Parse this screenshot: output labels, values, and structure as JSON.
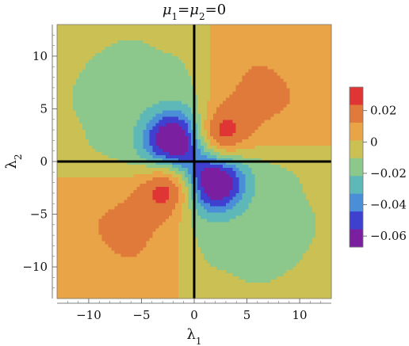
{
  "chart_data": {
    "type": "heatmap",
    "title_parts": [
      {
        "t": "μ",
        "italic": true
      },
      {
        "t": "1",
        "sub": true
      },
      {
        "t": "=",
        "italic": false
      },
      {
        "t": "μ",
        "italic": true
      },
      {
        "t": "2",
        "sub": true
      },
      {
        "t": "=0",
        "italic": false
      }
    ],
    "xlabel_parts": [
      {
        "t": "λ"
      },
      {
        "t": "1",
        "sub": true
      }
    ],
    "ylabel_parts": [
      {
        "t": "λ"
      },
      {
        "t": "2",
        "sub": true
      }
    ],
    "xlim": [
      -13,
      13
    ],
    "ylim": [
      -13,
      13
    ],
    "x_ticks": [
      -10,
      -5,
      0,
      5,
      10
    ],
    "y_ticks": [
      -10,
      -5,
      0,
      5,
      10
    ],
    "x_tick_labels": [
      "−10",
      "−5",
      "0",
      "5",
      "10"
    ],
    "y_tick_labels": [
      "−10",
      "−5",
      "0",
      "5",
      "10"
    ],
    "colorbar": {
      "range": [
        -0.067,
        0.035
      ],
      "ticks": [
        0.02,
        0,
        -0.02,
        -0.04,
        -0.06
      ],
      "tick_labels": [
        "0.02",
        "0",
        "−0.02",
        "−0.04",
        "−0.06"
      ],
      "colors": [
        "#7a1fa0",
        "#3f3fd0",
        "#4a8ed8",
        "#5fb8b8",
        "#8cc78c",
        "#cbc053",
        "#e8a447",
        "#e07a3a",
        "#e03535"
      ]
    },
    "extrema": [
      {
        "x": 2,
        "y": 2,
        "value": 0.035,
        "label": "max"
      },
      {
        "x": -2,
        "y": -2,
        "value": 0.035,
        "label": "max"
      },
      {
        "x": -2,
        "y": 2,
        "value": -0.065,
        "label": "min"
      },
      {
        "x": 2,
        "y": -2,
        "value": -0.065,
        "label": "min"
      }
    ],
    "zero_lines": {
      "x": 0,
      "y": 0,
      "color": "#000000"
    },
    "grid": false
  }
}
